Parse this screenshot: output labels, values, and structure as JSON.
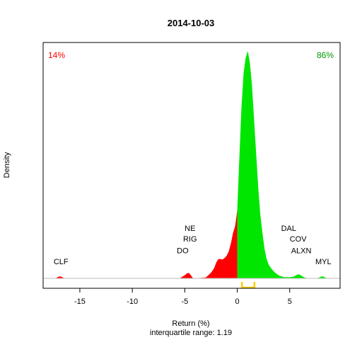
{
  "chart_data": {
    "type": "area",
    "title": "2014-10-03",
    "xlabel": "Return (%)",
    "ylabel": "Density",
    "subtitle": "interquartile range: 1.19",
    "xlim": [
      -18.5,
      9.8
    ],
    "ylim": [
      0,
      1.0
    ],
    "x_ticks": [
      -15,
      -10,
      -5,
      0,
      5
    ],
    "grid": false,
    "neg_color": "#ff0000",
    "pos_color": "#00e600",
    "iqr_color": "#ffcc00",
    "baseline_color": "#bebebe",
    "pct_negative": "14%",
    "pct_positive": "86%",
    "iqr": [
      0.45,
      1.64
    ],
    "density": {
      "x": [
        -17.4,
        -17.2,
        -17.0,
        -16.8,
        -16.6,
        -16.4,
        -10.0,
        -5.5,
        -5.2,
        -5.0,
        -4.8,
        -4.6,
        -4.4,
        -4.2,
        -4.0,
        -3.5,
        -3.0,
        -2.8,
        -2.5,
        -2.2,
        -2.0,
        -1.8,
        -1.6,
        -1.4,
        -1.2,
        -1.0,
        -0.8,
        -0.6,
        -0.4,
        -0.2,
        0.0,
        0.2,
        0.4,
        0.6,
        0.8,
        1.0,
        1.2,
        1.4,
        1.6,
        1.8,
        2.0,
        2.2,
        2.4,
        2.6,
        2.8,
        3.0,
        3.3,
        3.6,
        4.0,
        4.5,
        5.0,
        5.4,
        5.7,
        5.9,
        6.1,
        6.4,
        6.8,
        7.5,
        7.8,
        8.0,
        8.2,
        8.4,
        8.7,
        9.5
      ],
      "y": [
        0.0,
        0.003,
        0.008,
        0.008,
        0.003,
        0.0,
        0.0,
        0.0,
        0.008,
        0.014,
        0.022,
        0.024,
        0.012,
        0.0,
        0.0,
        0.002,
        0.004,
        0.012,
        0.025,
        0.045,
        0.07,
        0.085,
        0.085,
        0.083,
        0.09,
        0.1,
        0.12,
        0.155,
        0.2,
        0.23,
        0.3,
        0.53,
        0.75,
        0.9,
        0.97,
        1.0,
        0.95,
        0.85,
        0.7,
        0.55,
        0.4,
        0.28,
        0.2,
        0.13,
        0.085,
        0.06,
        0.04,
        0.025,
        0.012,
        0.005,
        0.005,
        0.008,
        0.016,
        0.018,
        0.012,
        0.004,
        0.0,
        0.0,
        0.003,
        0.008,
        0.008,
        0.003,
        0.0,
        0.0
      ]
    },
    "annotations": [
      {
        "label": "CLF",
        "x": -16.8,
        "level": 0.053
      },
      {
        "label": "DO",
        "x": -5.2,
        "level": 0.102
      },
      {
        "label": "RIG",
        "x": -4.5,
        "level": 0.152
      },
      {
        "label": "NE",
        "x": -4.5,
        "level": 0.2
      },
      {
        "label": "DAL",
        "x": 4.9,
        "level": 0.2
      },
      {
        "label": "COV",
        "x": 5.8,
        "level": 0.152
      },
      {
        "label": "ALXN",
        "x": 6.1,
        "level": 0.102
      },
      {
        "label": "MYL",
        "x": 8.2,
        "level": 0.053
      }
    ]
  }
}
